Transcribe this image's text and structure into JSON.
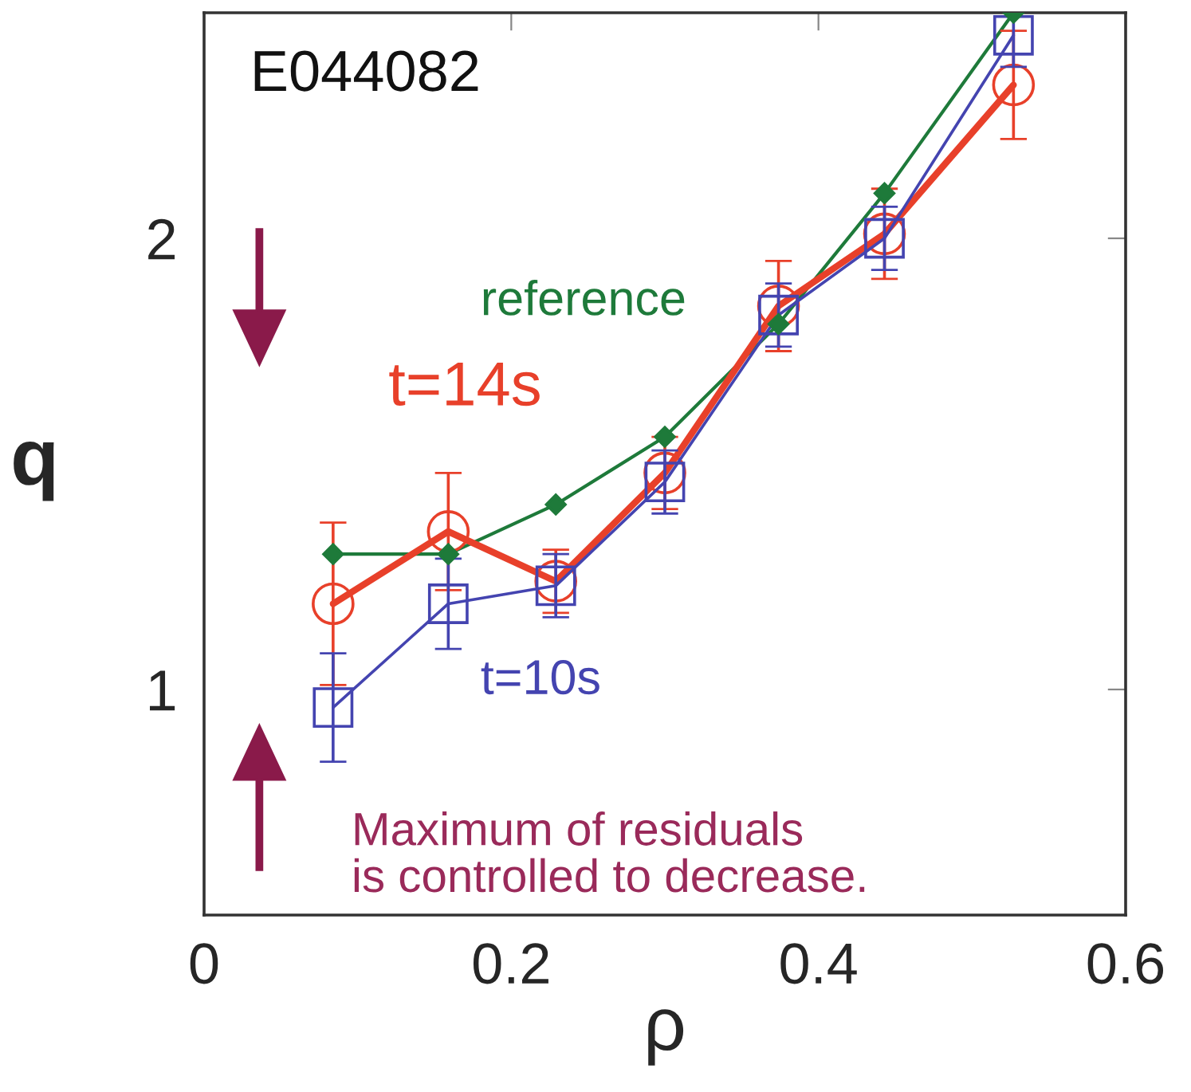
{
  "chart_data": {
    "type": "line",
    "xlabel": "ρ",
    "ylabel": "q",
    "x": [
      0.084,
      0.159,
      0.229,
      0.3,
      0.374,
      0.443,
      0.527
    ],
    "series": [
      {
        "name": "reference",
        "color": "#1e7a3a",
        "marker": "diamond",
        "values": [
          1.3,
          1.3,
          1.41,
          1.56,
          1.81,
          2.1,
          2.5
        ]
      },
      {
        "name": "t=14s",
        "color": "#e8402a",
        "marker": "circle",
        "values": [
          1.19,
          1.35,
          1.24,
          1.48,
          1.85,
          2.01,
          2.34
        ],
        "errors": [
          0.18,
          0.13,
          0.07,
          0.08,
          0.1,
          0.1,
          0.12
        ]
      },
      {
        "name": "t=10s",
        "color": "#4444b0",
        "marker": "square",
        "values": [
          0.96,
          1.19,
          1.23,
          1.46,
          1.83,
          2.0,
          2.45
        ],
        "errors": [
          0.12,
          0.1,
          0.07,
          0.07,
          0.07,
          0.07,
          0.07
        ]
      }
    ],
    "annotations": [
      "E044082",
      "Maximum of residuals\nis controlled to decrease."
    ],
    "xlim": [
      0,
      0.6
    ],
    "ylim": [
      0.5,
      2.5
    ],
    "xticks": [
      0,
      0.2,
      0.4,
      0.6
    ],
    "yticks": [
      1,
      2
    ],
    "grid": false,
    "legend": false
  }
}
